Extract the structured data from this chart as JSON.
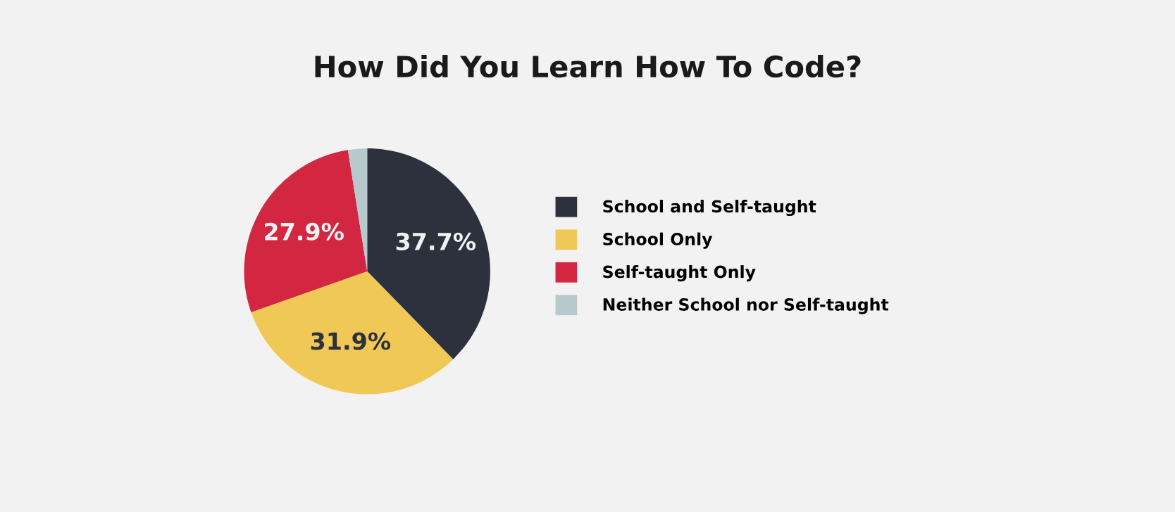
{
  "chart_data": {
    "type": "pie",
    "title": "How Did You Learn How To Code?",
    "categories": [
      "School and Self-taught",
      "School Only",
      "Self-taught Only",
      "Neither School nor Self-taught"
    ],
    "values": [
      37.7,
      31.9,
      27.9,
      2.5
    ],
    "colors": [
      "#2c313d",
      "#f0c855",
      "#d32641",
      "#b8c9ce"
    ],
    "value_labels": [
      "37.7%",
      "31.9%",
      "27.9%",
      null
    ],
    "legend": "right"
  }
}
